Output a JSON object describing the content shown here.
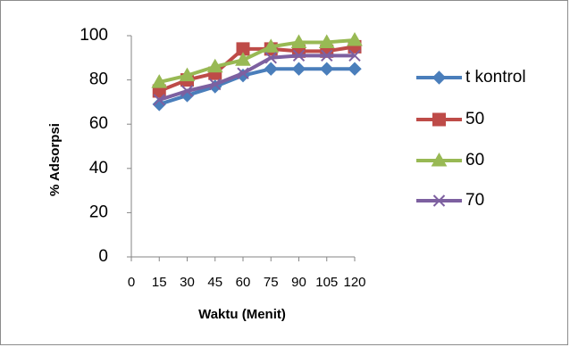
{
  "chart_data": {
    "type": "line",
    "xlabel": "Waktu (Menit)",
    "ylabel": "% Adsorpsi",
    "x": [
      15,
      30,
      45,
      60,
      75,
      90,
      105,
      120
    ],
    "x_ticks": [
      "0",
      "15",
      "30",
      "45",
      "60",
      "75",
      "90",
      "105",
      "120"
    ],
    "y_ticks": [
      "0",
      "20",
      "40",
      "60",
      "80",
      "100"
    ],
    "ylim": [
      0,
      100
    ],
    "grid": false,
    "legend_position": "right",
    "series": [
      {
        "name": "t kontrol",
        "color": "#4a7ebb",
        "marker": "diamond",
        "values": [
          69,
          73,
          77,
          82,
          85,
          85,
          85,
          85
        ]
      },
      {
        "name": "50",
        "color": "#be4b48",
        "marker": "square",
        "values": [
          75,
          80,
          83,
          94,
          94,
          93,
          93,
          95
        ]
      },
      {
        "name": "60",
        "color": "#98b954",
        "marker": "triangle",
        "values": [
          79,
          82,
          86,
          89,
          95,
          97,
          97,
          98
        ]
      },
      {
        "name": "70",
        "color": "#7d60a0",
        "marker": "x",
        "values": [
          71,
          75,
          78,
          83,
          90,
          91,
          91,
          91
        ]
      }
    ]
  }
}
